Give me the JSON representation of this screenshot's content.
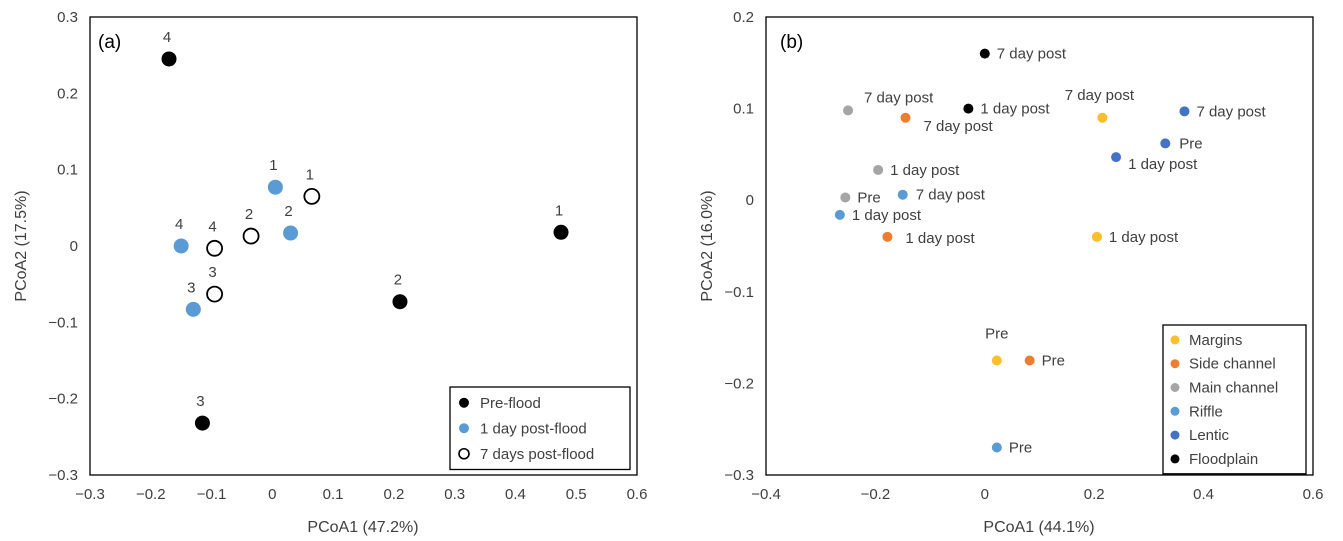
{
  "chart_data": [
    {
      "type": "scatter",
      "panel_label": "(a)",
      "xlabel": "PCoA1 (47.2%)",
      "ylabel": "PCoA2 (17.5%)",
      "xlim": [
        -0.3,
        0.6
      ],
      "ylim": [
        -0.3,
        0.3
      ],
      "xticks": [
        -0.3,
        -0.2,
        -0.1,
        0,
        0.1,
        0.2,
        0.3,
        0.4,
        0.5,
        0.6
      ],
      "yticks": [
        -0.3,
        -0.2,
        -0.1,
        0,
        0.1,
        0.2,
        0.3
      ],
      "xtick_labels": [
        "−0.3",
        "−0.2",
        "−0.1",
        "0",
        "0.1",
        "0.2",
        "0.3",
        "0.4",
        "0.5",
        "0.6"
      ],
      "ytick_labels": [
        "−0.3",
        "−0.2",
        "−0.1",
        "0",
        "0.1",
        "0.2",
        "0.3"
      ],
      "grid": false,
      "legend_position": "bottom-right",
      "series": [
        {
          "name": "Pre-flood",
          "color": "#000000",
          "marker": "filled",
          "points": [
            {
              "x": -0.17,
              "y": 0.245,
              "label": "4"
            },
            {
              "x": 0.475,
              "y": 0.018,
              "label": "1"
            },
            {
              "x": 0.21,
              "y": -0.073,
              "label": "2"
            },
            {
              "x": -0.115,
              "y": -0.232,
              "label": "3"
            }
          ]
        },
        {
          "name": "1 day post-flood",
          "color": "#5b9bd5",
          "marker": "filled",
          "points": [
            {
              "x": 0.005,
              "y": 0.077,
              "label": "1"
            },
            {
              "x": 0.03,
              "y": 0.017,
              "label": "2"
            },
            {
              "x": -0.15,
              "y": 0.0,
              "label": "4"
            },
            {
              "x": -0.13,
              "y": -0.083,
              "label": "3"
            }
          ]
        },
        {
          "name": "7 days post-flood",
          "color": "#000000",
          "marker": "open",
          "points": [
            {
              "x": 0.065,
              "y": 0.065,
              "label": "1"
            },
            {
              "x": -0.035,
              "y": 0.013,
              "label": "2"
            },
            {
              "x": -0.095,
              "y": -0.003,
              "label": "4"
            },
            {
              "x": -0.095,
              "y": -0.063,
              "label": "3"
            }
          ]
        }
      ]
    },
    {
      "type": "scatter",
      "panel_label": "(b)",
      "xlabel": "PCoA1 (44.1%)",
      "ylabel": "PCoA2 (16.0%)",
      "xlim": [
        -0.4,
        0.6
      ],
      "ylim": [
        -0.3,
        0.2
      ],
      "xticks": [
        -0.4,
        -0.2,
        0,
        0.2,
        0.4,
        0.6
      ],
      "yticks": [
        -0.3,
        -0.2,
        -0.1,
        0,
        0.1,
        0.2
      ],
      "xtick_labels": [
        "−0.4",
        "−0.2",
        "0",
        "0.2",
        "0.4",
        "0.6"
      ],
      "ytick_labels": [
        "−0.3",
        "−0.2",
        "−0.1",
        "0",
        "0.1",
        "0.2"
      ],
      "grid": false,
      "legend_position": "bottom-right",
      "series": [
        {
          "name": "Margins",
          "color": "#fbbf2c",
          "points": [
            {
              "x": 0.215,
              "y": 0.09,
              "label": "7 day post"
            },
            {
              "x": 0.205,
              "y": -0.04,
              "label": "1 day post"
            },
            {
              "x": 0.022,
              "y": -0.175,
              "label": "Pre"
            }
          ]
        },
        {
          "name": "Side channel",
          "color": "#ed7d31",
          "points": [
            {
              "x": -0.145,
              "y": 0.09,
              "label": "7 day post"
            },
            {
              "x": -0.178,
              "y": -0.04,
              "label": "1 day post"
            },
            {
              "x": 0.082,
              "y": -0.175,
              "label": "Pre"
            }
          ]
        },
        {
          "name": "Main channel",
          "color": "#a5a5a5",
          "points": [
            {
              "x": -0.25,
              "y": 0.098,
              "label": "7 day post"
            },
            {
              "x": -0.195,
              "y": 0.033,
              "label": "1 day post"
            },
            {
              "x": -0.255,
              "y": 0.003,
              "label": "Pre"
            }
          ]
        },
        {
          "name": "Riffle",
          "color": "#5b9bd5",
          "points": [
            {
              "x": -0.15,
              "y": 0.006,
              "label": "7 day post"
            },
            {
              "x": -0.265,
              "y": -0.016,
              "label": "1 day post"
            },
            {
              "x": 0.022,
              "y": -0.27,
              "label": "Pre"
            }
          ]
        },
        {
          "name": "Lentic",
          "color": "#4472c4",
          "points": [
            {
              "x": 0.365,
              "y": 0.097,
              "label": "7 day post"
            },
            {
              "x": 0.24,
              "y": 0.047,
              "label": "1 day post"
            },
            {
              "x": 0.33,
              "y": 0.062,
              "label": "Pre"
            }
          ]
        },
        {
          "name": "Floodplain",
          "color": "#000000",
          "points": [
            {
              "x": 0.0,
              "y": 0.16,
              "label": "7 day post"
            },
            {
              "x": -0.03,
              "y": 0.1,
              "label": "1 day post"
            }
          ]
        }
      ]
    }
  ]
}
